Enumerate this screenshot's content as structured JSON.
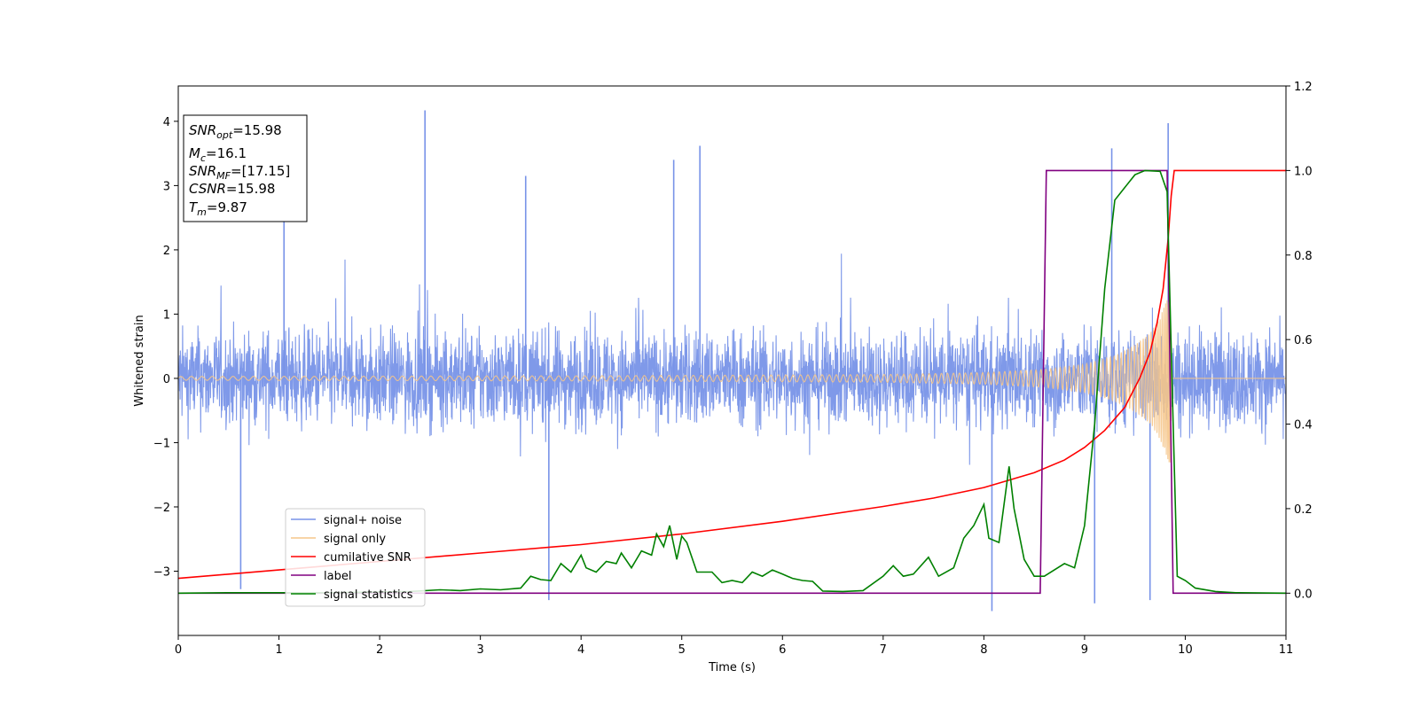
{
  "chart_data": {
    "type": "line",
    "xlabel": "Time (s)",
    "ylabel": "Whitened strain",
    "ylabel_right": "",
    "xlim": [
      0,
      11
    ],
    "ylim": [
      -4.0,
      4.55
    ],
    "ylim_right": [
      -0.1,
      1.2
    ],
    "x_ticks": [
      0,
      1,
      2,
      3,
      4,
      5,
      6,
      7,
      8,
      9,
      10,
      11
    ],
    "y_ticks": [
      -3,
      -2,
      -1,
      0,
      1,
      2,
      3,
      4
    ],
    "y_ticks_right": [
      0.0,
      0.2,
      0.4,
      0.6,
      0.8,
      1.0,
      1.2
    ],
    "grid": false,
    "legend_placement": "lower-left",
    "annotation": {
      "lines": [
        {
          "sym": "SNR",
          "sub": "opt",
          "val": "=15.98"
        },
        {
          "sym": "M",
          "sub": "c",
          "val": "=16.1"
        },
        {
          "sym": "SNR",
          "sub": "MF",
          "val": "=[17.15]"
        },
        {
          "sym": "CSNR",
          "sub": "",
          "val": "=15.98"
        },
        {
          "sym": "T",
          "sub": "m",
          "val": "=9.87"
        }
      ]
    },
    "noise_band": {
      "typical_range": [
        -1.6,
        1.6
      ],
      "max_peak": 4.17,
      "min_dip": -3.62,
      "peaks": [
        [
          2.45,
          4.17
        ],
        [
          9.83,
          3.97
        ],
        [
          5.18,
          3.62
        ],
        [
          9.27,
          3.58
        ],
        [
          4.92,
          3.4
        ],
        [
          1.05,
          3.3
        ],
        [
          3.45,
          3.15
        ],
        [
          8.08,
          -3.62
        ],
        [
          3.68,
          -3.45
        ],
        [
          9.1,
          -3.5
        ],
        [
          9.65,
          -3.45
        ],
        [
          0.62,
          -3.28
        ]
      ]
    },
    "series": [
      {
        "name": "signal+ noise",
        "axis": "left",
        "color": "#7893e8",
        "kind": "noise"
      },
      {
        "name": "signal only",
        "axis": "left",
        "color": "#f5c58a",
        "kind": "chirp",
        "merger_time": 9.87,
        "amplitude_points": [
          [
            0,
            0.03
          ],
          [
            4,
            0.04
          ],
          [
            7,
            0.06
          ],
          [
            8,
            0.09
          ],
          [
            8.6,
            0.14
          ],
          [
            9.0,
            0.22
          ],
          [
            9.3,
            0.35
          ],
          [
            9.5,
            0.52
          ],
          [
            9.65,
            0.7
          ],
          [
            9.75,
            0.95
          ],
          [
            9.85,
            1.35
          ],
          [
            9.87,
            0.0
          ],
          [
            11,
            0.0
          ]
        ]
      },
      {
        "name": "cumilative SNR",
        "axis": "right",
        "color": "#ff0000",
        "points": [
          [
            0,
            0.035
          ],
          [
            1,
            0.055
          ],
          [
            2,
            0.075
          ],
          [
            3,
            0.095
          ],
          [
            4,
            0.115
          ],
          [
            5,
            0.14
          ],
          [
            6,
            0.17
          ],
          [
            7,
            0.205
          ],
          [
            7.5,
            0.225
          ],
          [
            8,
            0.25
          ],
          [
            8.5,
            0.285
          ],
          [
            8.8,
            0.315
          ],
          [
            9.0,
            0.345
          ],
          [
            9.2,
            0.385
          ],
          [
            9.4,
            0.44
          ],
          [
            9.55,
            0.51
          ],
          [
            9.65,
            0.57
          ],
          [
            9.72,
            0.64
          ],
          [
            9.78,
            0.72
          ],
          [
            9.83,
            0.84
          ],
          [
            9.86,
            0.94
          ],
          [
            9.89,
            1.0
          ],
          [
            11,
            1.0
          ]
        ]
      },
      {
        "name": "label",
        "axis": "right",
        "color": "#800080",
        "points": [
          [
            0,
            0.0
          ],
          [
            8.56,
            0.0
          ],
          [
            8.62,
            1.0
          ],
          [
            9.82,
            1.0
          ],
          [
            9.88,
            0.0
          ],
          [
            11,
            0.0
          ]
        ]
      },
      {
        "name": "signal statistics",
        "axis": "right",
        "color": "#008000",
        "points": [
          [
            0,
            0.0
          ],
          [
            0.5,
            0.001
          ],
          [
            1,
            0.001
          ],
          [
            1.5,
            0.001
          ],
          [
            2,
            0.003
          ],
          [
            2.3,
            0.004
          ],
          [
            2.6,
            0.008
          ],
          [
            2.8,
            0.006
          ],
          [
            3.0,
            0.01
          ],
          [
            3.2,
            0.008
          ],
          [
            3.4,
            0.012
          ],
          [
            3.5,
            0.04
          ],
          [
            3.6,
            0.032
          ],
          [
            3.7,
            0.03
          ],
          [
            3.8,
            0.07
          ],
          [
            3.9,
            0.05
          ],
          [
            4.0,
            0.09
          ],
          [
            4.05,
            0.06
          ],
          [
            4.15,
            0.05
          ],
          [
            4.25,
            0.075
          ],
          [
            4.35,
            0.07
          ],
          [
            4.4,
            0.095
          ],
          [
            4.5,
            0.06
          ],
          [
            4.6,
            0.1
          ],
          [
            4.7,
            0.09
          ],
          [
            4.75,
            0.14
          ],
          [
            4.82,
            0.11
          ],
          [
            4.88,
            0.16
          ],
          [
            4.95,
            0.08
          ],
          [
            5.0,
            0.135
          ],
          [
            5.05,
            0.12
          ],
          [
            5.15,
            0.05
          ],
          [
            5.3,
            0.05
          ],
          [
            5.4,
            0.025
          ],
          [
            5.5,
            0.03
          ],
          [
            5.6,
            0.025
          ],
          [
            5.7,
            0.05
          ],
          [
            5.8,
            0.04
          ],
          [
            5.9,
            0.055
          ],
          [
            6.0,
            0.045
          ],
          [
            6.1,
            0.035
          ],
          [
            6.2,
            0.03
          ],
          [
            6.3,
            0.028
          ],
          [
            6.4,
            0.005
          ],
          [
            6.6,
            0.004
          ],
          [
            6.8,
            0.006
          ],
          [
            7.0,
            0.04
          ],
          [
            7.1,
            0.065
          ],
          [
            7.2,
            0.04
          ],
          [
            7.3,
            0.045
          ],
          [
            7.45,
            0.085
          ],
          [
            7.55,
            0.04
          ],
          [
            7.7,
            0.06
          ],
          [
            7.8,
            0.13
          ],
          [
            7.9,
            0.16
          ],
          [
            8.0,
            0.21
          ],
          [
            8.05,
            0.13
          ],
          [
            8.15,
            0.12
          ],
          [
            8.25,
            0.3
          ],
          [
            8.3,
            0.2
          ],
          [
            8.4,
            0.08
          ],
          [
            8.5,
            0.04
          ],
          [
            8.6,
            0.04
          ],
          [
            8.8,
            0.07
          ],
          [
            8.9,
            0.06
          ],
          [
            9.0,
            0.16
          ],
          [
            9.1,
            0.4
          ],
          [
            9.2,
            0.72
          ],
          [
            9.3,
            0.93
          ],
          [
            9.4,
            0.96
          ],
          [
            9.5,
            0.99
          ],
          [
            9.6,
            1.0
          ],
          [
            9.75,
            0.998
          ],
          [
            9.82,
            0.95
          ],
          [
            9.88,
            0.4
          ],
          [
            9.92,
            0.04
          ],
          [
            10.0,
            0.03
          ],
          [
            10.1,
            0.012
          ],
          [
            10.3,
            0.004
          ],
          [
            10.5,
            0.001
          ],
          [
            11,
            0.0
          ]
        ]
      }
    ]
  }
}
